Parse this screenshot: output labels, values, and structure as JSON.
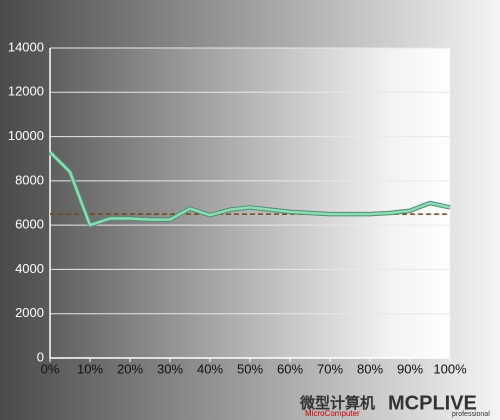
{
  "chart_data": {
    "type": "line",
    "x": [
      0,
      5,
      10,
      15,
      20,
      25,
      30,
      35,
      40,
      45,
      50,
      55,
      60,
      65,
      70,
      75,
      80,
      85,
      90,
      95,
      100
    ],
    "series": [
      {
        "color": "#8fdcb4",
        "values": [
          9300,
          8400,
          6000,
          6300,
          6300,
          6250,
          6250,
          6750,
          6450,
          6700,
          6800,
          6700,
          6600,
          6550,
          6500,
          6500,
          6500,
          6550,
          6650,
          7000,
          6800
        ]
      }
    ],
    "reference_line": {
      "value": 6500,
      "color": "#6b4a1e"
    },
    "xlim": [
      0,
      100
    ],
    "xticks": [
      {
        "value": 0,
        "label": "0%"
      },
      {
        "value": 10,
        "label": "10%"
      },
      {
        "value": 20,
        "label": "20%"
      },
      {
        "value": 30,
        "label": "30%"
      },
      {
        "value": 40,
        "label": "40%"
      },
      {
        "value": 50,
        "label": "50%"
      },
      {
        "value": 60,
        "label": "60%"
      },
      {
        "value": 70,
        "label": "70%"
      },
      {
        "value": 80,
        "label": "80%"
      },
      {
        "value": 90,
        "label": "90%"
      },
      {
        "value": 100,
        "label": "100%"
      }
    ],
    "ylim": [
      0,
      14000
    ],
    "yticks": [
      0,
      2000,
      4000,
      6000,
      8000,
      10000,
      12000,
      14000
    ],
    "grid": true,
    "watermark": {
      "cn": "微型计算机",
      "en": "MicroComputer",
      "logo": "MCPLIVE",
      "sub": "professional"
    }
  }
}
